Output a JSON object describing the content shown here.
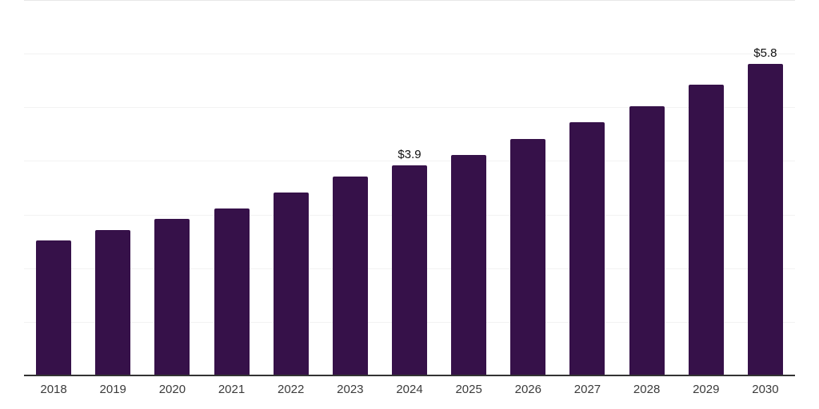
{
  "chart_data": {
    "type": "bar",
    "title": "",
    "xlabel": "",
    "ylabel": "",
    "categories": [
      "2018",
      "2019",
      "2020",
      "2021",
      "2022",
      "2023",
      "2024",
      "2025",
      "2026",
      "2027",
      "2028",
      "2029",
      "2030"
    ],
    "values": [
      2.5,
      2.7,
      2.9,
      3.1,
      3.4,
      3.7,
      3.9,
      4.1,
      4.4,
      4.7,
      5.0,
      5.4,
      5.8
    ],
    "data_labels": [
      {
        "index": 6,
        "text": "$3.9"
      },
      {
        "index": 12,
        "text": "$5.8"
      }
    ],
    "ylim": [
      0,
      7
    ],
    "grid_step": 1,
    "grid": true,
    "legend": "none",
    "colors": {
      "bar": "#361149",
      "axis_line": "#333333",
      "gridline": "#f2f2f2",
      "top_gridline": "#e7e7e7",
      "tick_label": "#3b3b3b",
      "data_label": "#111111",
      "background": "#ffffff"
    }
  }
}
